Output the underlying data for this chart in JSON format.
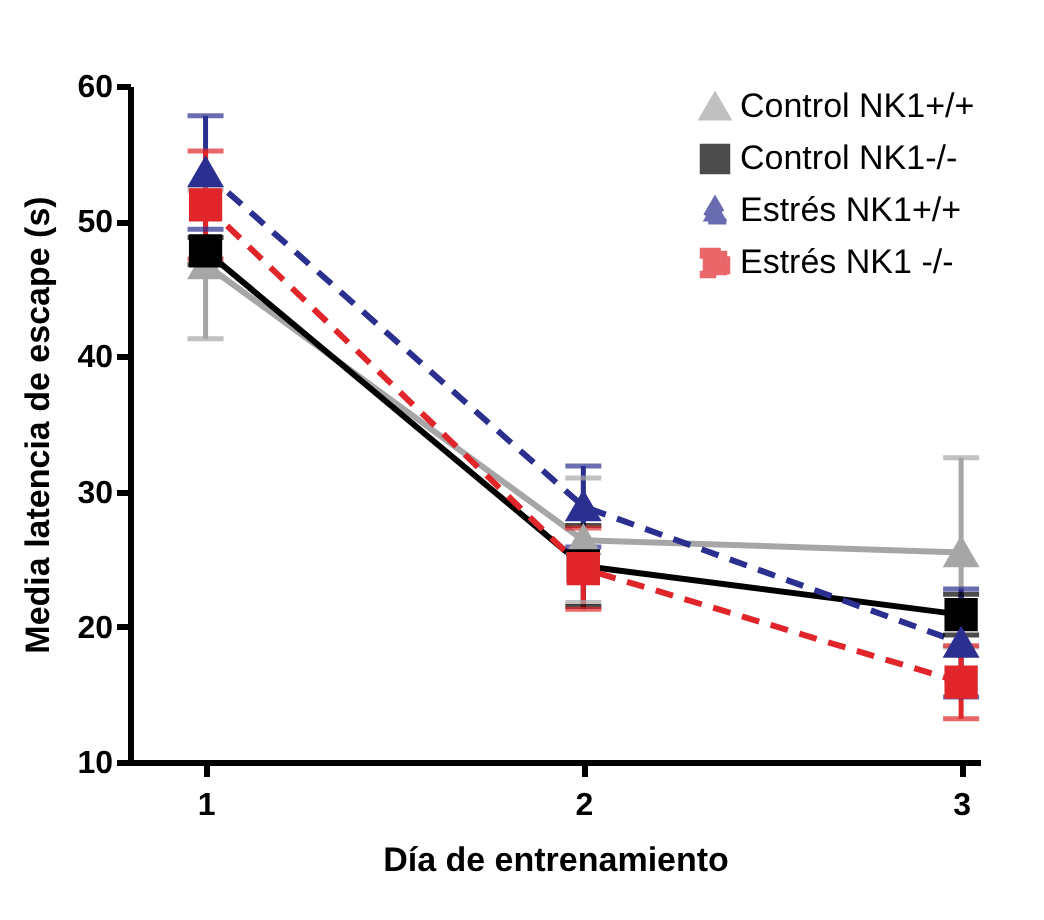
{
  "chart_data": {
    "type": "line",
    "xlabel": "Día de entrenamiento",
    "ylabel": "Media latencia de escape (s)",
    "x": [
      1,
      2,
      3
    ],
    "xlim": [
      0.8,
      3.05
    ],
    "xticks": [
      1,
      2,
      3
    ],
    "ylim": [
      10,
      60
    ],
    "yticks": [
      10,
      20,
      30,
      40,
      50,
      60
    ],
    "grid": false,
    "legend": "top right",
    "series": [
      {
        "name": "Control NK1+/+",
        "color": "#a6a6a6",
        "marker": "triangle",
        "line_style": "solid",
        "values": [
          46.8,
          26.4,
          25.5
        ],
        "errors": [
          5.5,
          4.6,
          7
        ]
      },
      {
        "name": "Control NK1-/-",
        "color": "#000000",
        "marker": "square",
        "line_style": "solid",
        "values": [
          47.8,
          24.5,
          20.9
        ],
        "errors": [
          1,
          3,
          1.5
        ]
      },
      {
        "name": "Estrés NK1+/+",
        "color": "#2b2f8f",
        "marker": "triangle",
        "line_style": "dashed",
        "values": [
          53.6,
          28.9,
          18.8
        ],
        "errors": [
          4.2,
          3,
          4
        ]
      },
      {
        "name": "Estrés NK1 -/-",
        "color": "#e0262a",
        "marker": "square",
        "line_style": "dashed",
        "values": [
          51.2,
          24.3,
          15.9
        ],
        "errors": [
          4,
          3,
          2.7
        ]
      }
    ]
  }
}
